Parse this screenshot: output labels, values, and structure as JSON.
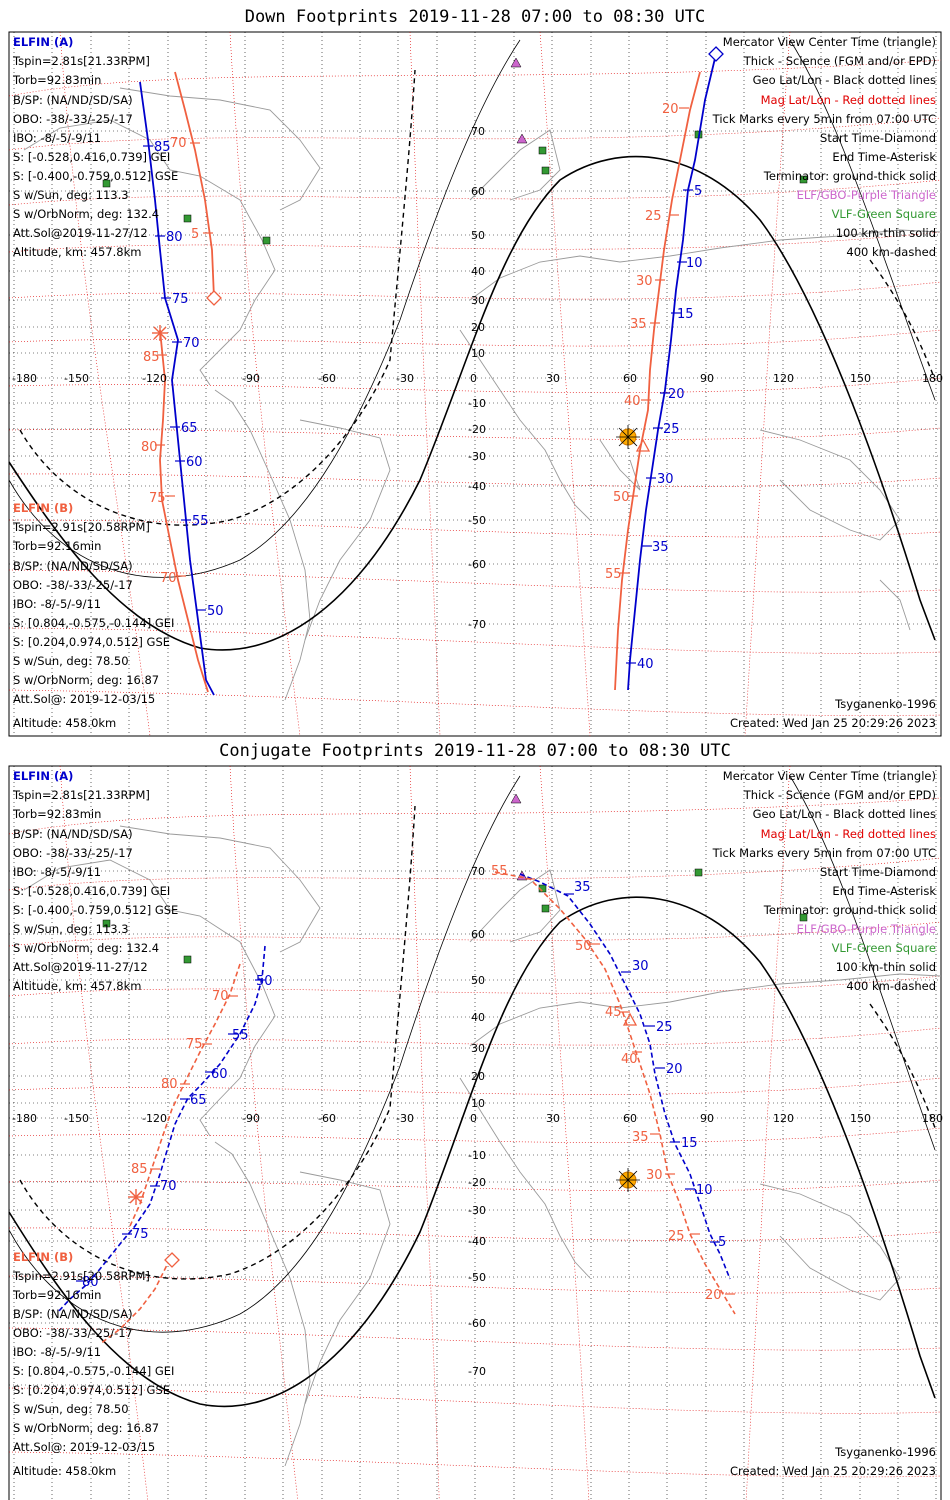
{
  "colors": {
    "elfin_a": "#0000cc",
    "elfin_b": "#f06040",
    "geo_grid": "#000000",
    "mag_grid": "#e00000",
    "terminator": "#000000",
    "elf_gbo": "#cc66cc",
    "vlf": "#339933",
    "sun": "#ffaa00",
    "coast": "#9a9a9a"
  },
  "panels": [
    {
      "id": "down",
      "title": "Down Footprints 2019-11-28 07:00 to 08:30 UTC",
      "sat_a": {
        "name": "ELFIN (A)",
        "lines": [
          "Tspin=2.81s[21.33RPM]",
          "Torb=92.83min",
          "B/SP: (NA/ND/SD/SA)",
          "OBO: -38/-33/-25/-17",
          "IBO: -8/-5/-9/11",
          "S: [-0.528,0.416,0.739] GEI",
          "S: [-0.400,-0.759,0.512] GSE",
          "S w/Sun, deg: 113.3",
          "S w/OrbNorm, deg: 132.4",
          "Att.Sol@2019-11-27/12",
          "Altitude, km: 457.8km"
        ]
      },
      "sat_b": {
        "name": "ELFIN (B)",
        "lines": [
          "Tspin=2.91s[20.58RPM]",
          "Torb=92.16min",
          "B/SP: (NA/ND/SD/SA)",
          "OBO: -38/-33/-25/-17",
          "IBO: -8/-5/-9/11",
          "S: [0.804,-0.575,-0.144] GEI",
          "S: [0.204,0.974,0.512] GSE",
          "S w/Sun, deg: 78.50",
          "S w/OrbNorm, deg: 16.87",
          "Att.Sol@: 2019-12-03/15",
          "Altitude: 458.0km"
        ]
      },
      "legend": [
        {
          "text": "Mercator View Center Time (triangle)",
          "color": "#000000"
        },
        {
          "text": "Thick - Science (FGM and/or EPD)",
          "color": "#000000"
        },
        {
          "text": "Geo Lat/Lon - Black dotted lines",
          "color": "#000000"
        },
        {
          "text": "Mag Lat/Lon - Red dotted lines",
          "color": "#e00000"
        },
        {
          "text": "Tick Marks every 5min from 07:00 UTC",
          "color": "#000000"
        },
        {
          "text": "Start Time-Diamond",
          "color": "#000000"
        },
        {
          "text": "End Time-Asterisk",
          "color": "#000000"
        },
        {
          "text": "Terminator: ground-thick solid",
          "color": "#000000"
        },
        {
          "text": "ELF/GBO-Purple Triangle",
          "color": "#cc66cc"
        },
        {
          "text": "VLF-Green Square",
          "color": "#339933"
        },
        {
          "text": "100 km-thin solid",
          "color": "#000000"
        },
        {
          "text": "400 km-dashed",
          "color": "#000000"
        }
      ],
      "model": "Tsyganenko-1996",
      "created": "Created: Wed Jan 25 20:29:26 2023",
      "lon_labels": [
        "-180",
        "-150",
        "-120",
        "-90",
        "-60",
        "-30",
        "0",
        "30",
        "60",
        "90",
        "120",
        "150",
        "180"
      ],
      "lat_labels": [
        "70",
        "60",
        "50",
        "40",
        "30",
        "20",
        "10",
        "0",
        "-10",
        "-20",
        "-30",
        "-40",
        "-50",
        "-60",
        "-70"
      ],
      "marks_a": [
        "85",
        "80",
        "75",
        "70",
        "65",
        "60",
        "55",
        "50",
        "5",
        "10",
        "15",
        "20",
        "25",
        "30",
        "35",
        "40"
      ],
      "marks_b": [
        "70",
        "5",
        "85",
        "80",
        "75",
        "70",
        "20",
        "25",
        "30",
        "35",
        "40",
        "50",
        "55"
      ]
    },
    {
      "id": "conj",
      "title": "Conjugate Footprints 2019-11-28 07:00 to 08:30 UTC",
      "sat_a": {
        "name": "ELFIN (A)",
        "lines": [
          "Tspin=2.81s[21.33RPM]",
          "Torb=92.83min",
          "B/SP: (NA/ND/SD/SA)",
          "OBO: -38/-33/-25/-17",
          "IBO: -8/-5/-9/11",
          "S: [-0.528,0.416,0.739] GEI",
          "S: [-0.400,-0.759,0.512] GSE",
          "S w/Sun, deg: 113.3",
          "S w/OrbNorm, deg: 132.4",
          "Att.Sol@2019-11-27/12",
          "Altitude, km: 457.8km"
        ]
      },
      "sat_b": {
        "name": "ELFIN (B)",
        "lines": [
          "Tspin=2.91s[20.58RPM]",
          "Torb=92.16min",
          "B/SP: (NA/ND/SD/SA)",
          "OBO: -38/-33/-25/-17",
          "IBO: -8/-5/-9/11",
          "S: [0.804,-0.575,-0.144] GEI",
          "S: [0.204,0.974,0.512] GSE",
          "S w/Sun, deg: 78.50",
          "S w/OrbNorm, deg: 16.87",
          "Att.Sol@: 2019-12-03/15",
          "Altitude: 458.0km"
        ]
      },
      "legend": [
        {
          "text": "Mercator View Center Time (triangle)",
          "color": "#000000"
        },
        {
          "text": "Thick - Science (FGM and/or EPD)",
          "color": "#000000"
        },
        {
          "text": "Geo Lat/Lon - Black dotted lines",
          "color": "#000000"
        },
        {
          "text": "Mag Lat/Lon - Red dotted lines",
          "color": "#e00000"
        },
        {
          "text": "Tick Marks every 5min from 07:00 UTC",
          "color": "#000000"
        },
        {
          "text": "Start Time-Diamond",
          "color": "#000000"
        },
        {
          "text": "End Time-Asterisk",
          "color": "#000000"
        },
        {
          "text": "Terminator: ground-thick solid",
          "color": "#000000"
        },
        {
          "text": "ELF/GBO-Purple Triangle",
          "color": "#cc66cc"
        },
        {
          "text": "VLF-Green Square",
          "color": "#339933"
        },
        {
          "text": "100 km-thin solid",
          "color": "#000000"
        },
        {
          "text": "400 km-dashed",
          "color": "#000000"
        }
      ],
      "model": "Tsyganenko-1996",
      "created": "Created: Wed Jan 25 20:29:26 2023",
      "lon_labels": [
        "-180",
        "-150",
        "-120",
        "-90",
        "-60",
        "-30",
        "0",
        "30",
        "60",
        "90",
        "120",
        "150",
        "180"
      ],
      "lat_labels": [
        "70",
        "60",
        "50",
        "40",
        "30",
        "20",
        "10",
        "0",
        "-10",
        "-20",
        "-30",
        "-40",
        "-50",
        "-60",
        "-70"
      ],
      "marks_a": [
        "50",
        "55",
        "60",
        "65",
        "70",
        "75",
        "80",
        "35",
        "30",
        "25",
        "20",
        "15",
        "10",
        "5"
      ],
      "marks_b": [
        "70",
        "75",
        "80",
        "85",
        "55",
        "50",
        "45",
        "40",
        "35",
        "30",
        "25",
        "20"
      ]
    }
  ]
}
